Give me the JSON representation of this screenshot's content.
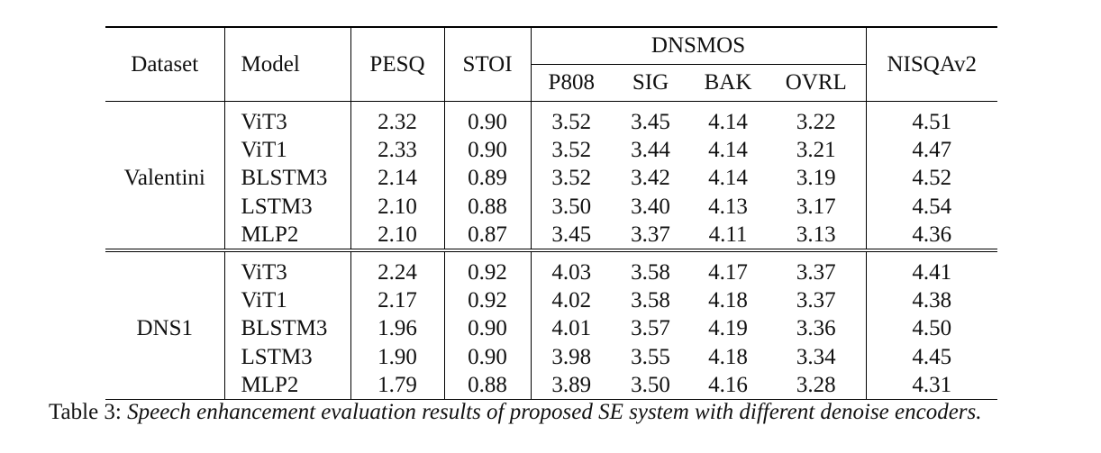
{
  "table": {
    "headers": {
      "dataset": "Dataset",
      "model": "Model",
      "pesq": "PESQ",
      "stoi": "STOI",
      "dnsmos": "DNSMOS",
      "dnsmos_sub": [
        "P808",
        "SIG",
        "BAK",
        "OVRL"
      ],
      "nisqa": "NISQAv2"
    },
    "groups": [
      {
        "dataset": "Valentini",
        "rows": [
          [
            "ViT3",
            "2.32",
            "0.90",
            "3.52",
            "3.45",
            "4.14",
            "3.22",
            "4.51"
          ],
          [
            "ViT1",
            "2.33",
            "0.90",
            "3.52",
            "3.44",
            "4.14",
            "3.21",
            "4.47"
          ],
          [
            "BLSTM3",
            "2.14",
            "0.89",
            "3.52",
            "3.42",
            "4.14",
            "3.19",
            "4.52"
          ],
          [
            "LSTM3",
            "2.10",
            "0.88",
            "3.50",
            "3.40",
            "4.13",
            "3.17",
            "4.54"
          ],
          [
            "MLP2",
            "2.10",
            "0.87",
            "3.45",
            "3.37",
            "4.11",
            "3.13",
            "4.36"
          ]
        ]
      },
      {
        "dataset": "DNS1",
        "rows": [
          [
            "ViT3",
            "2.24",
            "0.92",
            "4.03",
            "3.58",
            "4.17",
            "3.37",
            "4.41"
          ],
          [
            "ViT1",
            "2.17",
            "0.92",
            "4.02",
            "3.58",
            "4.18",
            "3.37",
            "4.38"
          ],
          [
            "BLSTM3",
            "1.96",
            "0.90",
            "4.01",
            "3.57",
            "4.19",
            "3.36",
            "4.50"
          ],
          [
            "LSTM3",
            "1.90",
            "0.90",
            "3.98",
            "3.55",
            "4.18",
            "3.34",
            "4.45"
          ],
          [
            "MLP2",
            "1.79",
            "0.88",
            "3.89",
            "3.50",
            "4.16",
            "3.28",
            "4.31"
          ]
        ]
      }
    ]
  },
  "caption": {
    "label": "Table 3: ",
    "text": "Speech enhancement evaluation results of proposed SE system with different denoise encoders."
  }
}
